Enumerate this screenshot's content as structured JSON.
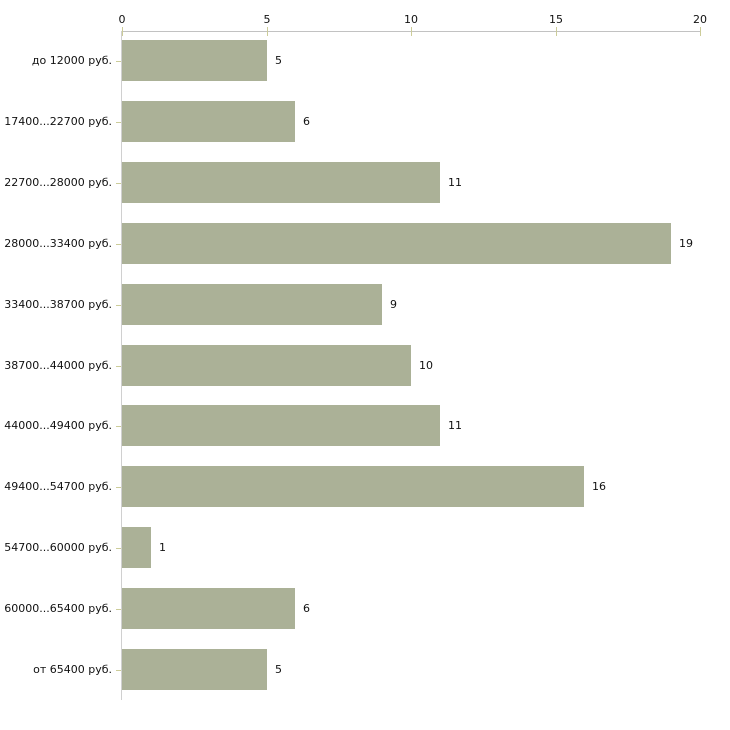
{
  "chart_data": {
    "type": "bar",
    "orientation": "horizontal",
    "title": "",
    "xlabel": "",
    "ylabel": "",
    "categories": [
      "до 12000 руб.",
      "17400...22700 руб.",
      "22700...28000 руб.",
      "28000...33400 руб.",
      "33400...38700 руб.",
      "38700...44000 руб.",
      "44000...49400 руб.",
      "49400...54700 руб.",
      "54700...60000 руб.",
      "60000...65400 руб.",
      "от 65400 руб."
    ],
    "values": [
      5,
      6,
      11,
      19,
      9,
      10,
      11,
      16,
      1,
      6,
      5
    ],
    "x_ticks": [
      0,
      5,
      10,
      15,
      20
    ],
    "xlim": [
      0,
      20
    ],
    "grid": false,
    "legend": "none",
    "x_axis_position": "top",
    "value_labels_shown": true,
    "colors": {
      "bar_fill": "#abb197",
      "x_axis_line": "#c2c2c2",
      "y_axis_line": "#d0d0d0",
      "tick_mark": "#cccc99",
      "label_text": "#111111",
      "background": "#ffffff"
    }
  }
}
